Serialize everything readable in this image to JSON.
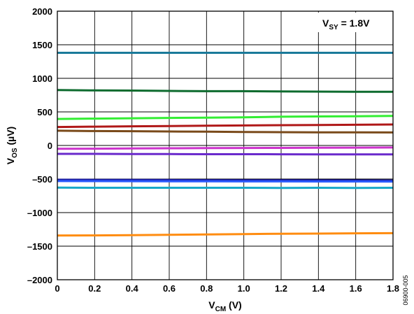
{
  "figure_code": "06900-005",
  "chart_data": {
    "type": "line",
    "title": "",
    "xlabel": {
      "main": "V",
      "sub": "CM",
      "suffix": " (V)"
    },
    "ylabel": {
      "main": "V",
      "sub": "OS",
      "suffix": " (µV)"
    },
    "xlim": [
      0,
      1.8
    ],
    "ylim": [
      -2000,
      2000
    ],
    "x_ticks": [
      0,
      0.2,
      0.4,
      0.6,
      0.8,
      1.0,
      1.2,
      1.4,
      1.6,
      1.8
    ],
    "x_tick_labels": [
      "0",
      "0.2",
      "0.4",
      "0.6",
      "0.8",
      "1.0",
      "1.2",
      "1.4",
      "1.6",
      "1.8"
    ],
    "y_ticks": [
      -2000,
      -1500,
      -1000,
      -500,
      0,
      500,
      1000,
      1500,
      2000
    ],
    "y_tick_labels": [
      "–2000",
      "–1500",
      "–1000",
      "–500",
      "0",
      "500",
      "1000",
      "1500",
      "2000"
    ],
    "grid": true,
    "legend": "none",
    "annotation": {
      "main": "V",
      "sub": "SY",
      "suffix": " = 1.8V",
      "placement": "top-right"
    },
    "x": [
      0,
      0.2,
      0.4,
      0.6,
      0.8,
      1.0,
      1.2,
      1.4,
      1.6,
      1.8
    ],
    "series": [
      {
        "color": "#1a7a9a",
        "values": [
          1380,
          1380,
          1380,
          1380,
          1380,
          1380,
          1380,
          1380,
          1380,
          1380
        ]
      },
      {
        "color": "#0d6b2e",
        "values": [
          825,
          820,
          818,
          812,
          808,
          808,
          805,
          802,
          800,
          800
        ]
      },
      {
        "color": "#33ee33",
        "values": [
          395,
          400,
          405,
          410,
          415,
          420,
          428,
          432,
          435,
          440
        ]
      },
      {
        "color": "#b01818",
        "values": [
          275,
          280,
          285,
          290,
          295,
          298,
          302,
          305,
          308,
          312
        ]
      },
      {
        "color": "#7a4a1a",
        "values": [
          220,
          215,
          212,
          208,
          205,
          200,
          198,
          196,
          195,
          194
        ]
      },
      {
        "color": "#cc33cc",
        "values": [
          -50,
          -48,
          -45,
          -42,
          -40,
          -38,
          -36,
          -34,
          -32,
          -30
        ]
      },
      {
        "color": "#6a2acc",
        "values": [
          -125,
          -125,
          -127,
          -128,
          -130,
          -130,
          -131,
          -132,
          -132,
          -133
        ]
      },
      {
        "color": "#1a1aa0",
        "values": [
          -510,
          -512,
          -513,
          -515,
          -517,
          -518,
          -519,
          -520,
          -521,
          -522
        ]
      },
      {
        "color": "#2a5aff",
        "values": [
          -530,
          -531,
          -532,
          -533,
          -534,
          -535,
          -535,
          -536,
          -536,
          -537
        ]
      },
      {
        "color": "#18a8c8",
        "values": [
          -628,
          -630,
          -630,
          -630,
          -630,
          -630,
          -632,
          -630,
          -632,
          -630
        ]
      },
      {
        "color": "#ff8c10",
        "values": [
          -1342,
          -1340,
          -1335,
          -1330,
          -1325,
          -1320,
          -1315,
          -1312,
          -1308,
          -1306
        ]
      }
    ]
  }
}
